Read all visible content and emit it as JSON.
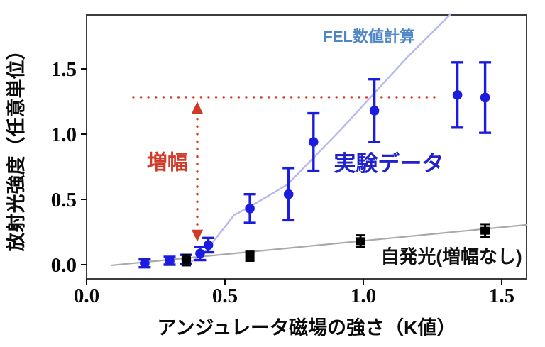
{
  "chart_data": {
    "type": "scatter",
    "title": "",
    "xlabel": "アンジュレータ磁場の強さ（K値）",
    "ylabel": "放射光強度（任意単位）",
    "xlim": [
      0,
      1.59
    ],
    "ylim": [
      -0.11,
      1.91
    ],
    "grid": false,
    "xticks": {
      "values": [
        0.0,
        0.5,
        1.0,
        1.5
      ],
      "labels": [
        "0.0",
        "0.5",
        "1.0",
        "1.5"
      ]
    },
    "yticks": {
      "values": [
        0.0,
        0.5,
        1.0,
        1.5
      ],
      "labels": [
        "0.0",
        "0.5",
        "1.0",
        "1.5"
      ]
    },
    "series": [
      {
        "name": "実験データ",
        "marker": "circle",
        "color": "#1c1ce0",
        "points": [
          {
            "x": 0.21,
            "y": 0.01,
            "err": 0.03
          },
          {
            "x": 0.3,
            "y": 0.03,
            "err": 0.03
          },
          {
            "x": 0.36,
            "y": 0.04,
            "err": 0.035
          },
          {
            "x": 0.41,
            "y": 0.085,
            "err": 0.05
          },
          {
            "x": 0.44,
            "y": 0.15,
            "err": 0.055
          },
          {
            "x": 0.59,
            "y": 0.43,
            "err": 0.11
          },
          {
            "x": 0.73,
            "y": 0.54,
            "err": 0.2
          },
          {
            "x": 0.82,
            "y": 0.94,
            "err": 0.22
          },
          {
            "x": 1.04,
            "y": 1.18,
            "err": 0.24
          },
          {
            "x": 1.34,
            "y": 1.3,
            "err": 0.25
          },
          {
            "x": 1.44,
            "y": 1.28,
            "err": 0.27
          }
        ]
      },
      {
        "name": "自発光（増幅なし）",
        "marker": "square",
        "color": "#000000",
        "points": [
          {
            "x": 0.36,
            "y": 0.035,
            "err": 0.04
          },
          {
            "x": 0.59,
            "y": 0.065,
            "err": 0.035
          },
          {
            "x": 0.99,
            "y": 0.18,
            "err": 0.045
          },
          {
            "x": 1.44,
            "y": 0.26,
            "err": 0.05
          }
        ]
      }
    ],
    "lines": [
      {
        "name": "spontaneous-fit-line",
        "color": "#a9a9a9",
        "width": 2.2,
        "points": [
          [
            0.09,
            -0.005
          ],
          [
            1.59,
            0.305
          ]
        ]
      },
      {
        "name": "fel-simulation-line",
        "color": "#b6b9ee",
        "width": 2.4,
        "points": [
          [
            0.375,
            0.02
          ],
          [
            0.418,
            0.071
          ],
          [
            0.469,
            0.207
          ],
          [
            0.533,
            0.38
          ],
          [
            0.587,
            0.44
          ],
          [
            0.726,
            0.614
          ],
          [
            0.918,
            1.033
          ],
          [
            1.156,
            1.582
          ],
          [
            1.315,
            1.918
          ]
        ]
      },
      {
        "name": "amplified-level-dotted-line",
        "color": "#d03a28",
        "width": 3.4,
        "dotted": true,
        "points": [
          [
            0.169,
            1.283
          ],
          [
            1.259,
            1.283
          ]
        ]
      }
    ],
    "arrow": {
      "name": "amplification-arrow",
      "x": 0.4,
      "y_top": 1.25,
      "y_bottom": 0.175,
      "color": "#d03a28"
    },
    "annotations": [
      {
        "text": "FEL数値計算",
        "x": 1.021,
        "y": 1.75,
        "color": "#4e86c6",
        "size": 22,
        "weight": "600"
      },
      {
        "text": "実験データ",
        "x": 1.092,
        "y": 0.777,
        "color": "#2222cc",
        "size": 31,
        "weight": "700"
      },
      {
        "text": "自発光(増幅なし)",
        "x": 1.318,
        "y": 0.065,
        "color": "#111111",
        "size": 26,
        "weight": "600"
      },
      {
        "text": "増幅",
        "x": 0.292,
        "y": 0.788,
        "color": "#d03a28",
        "size": 29,
        "weight": "700"
      }
    ],
    "frame_color": "#3c3c3c"
  }
}
